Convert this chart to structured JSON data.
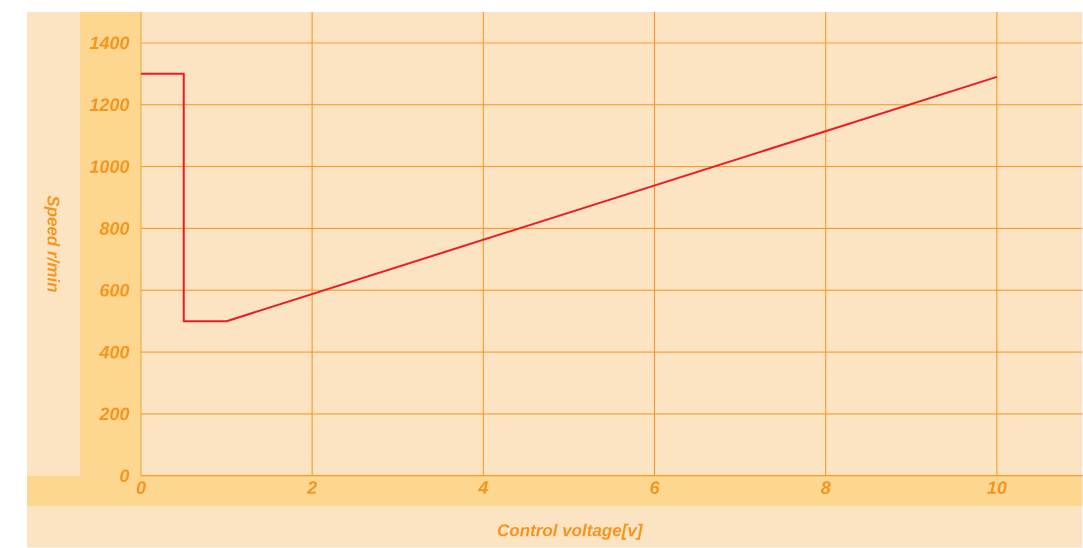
{
  "chart_data": {
    "type": "line",
    "xlabel": "Control voltage[v]",
    "ylabel": "Speed r/min",
    "x": [
      0,
      0.5,
      0.5,
      1,
      10
    ],
    "series": [
      {
        "color": "#ed1c24",
        "values": [
          1300,
          1300,
          500,
          500,
          1290
        ]
      }
    ],
    "xlim": [
      0,
      11
    ],
    "ylim": [
      0,
      1500
    ],
    "xticks": [
      0,
      2,
      4,
      6,
      8,
      10
    ],
    "yticks": [
      0,
      200,
      400,
      600,
      800,
      1000,
      1200,
      1400
    ],
    "grid": true,
    "marker": "none",
    "line_style": "solid"
  }
}
